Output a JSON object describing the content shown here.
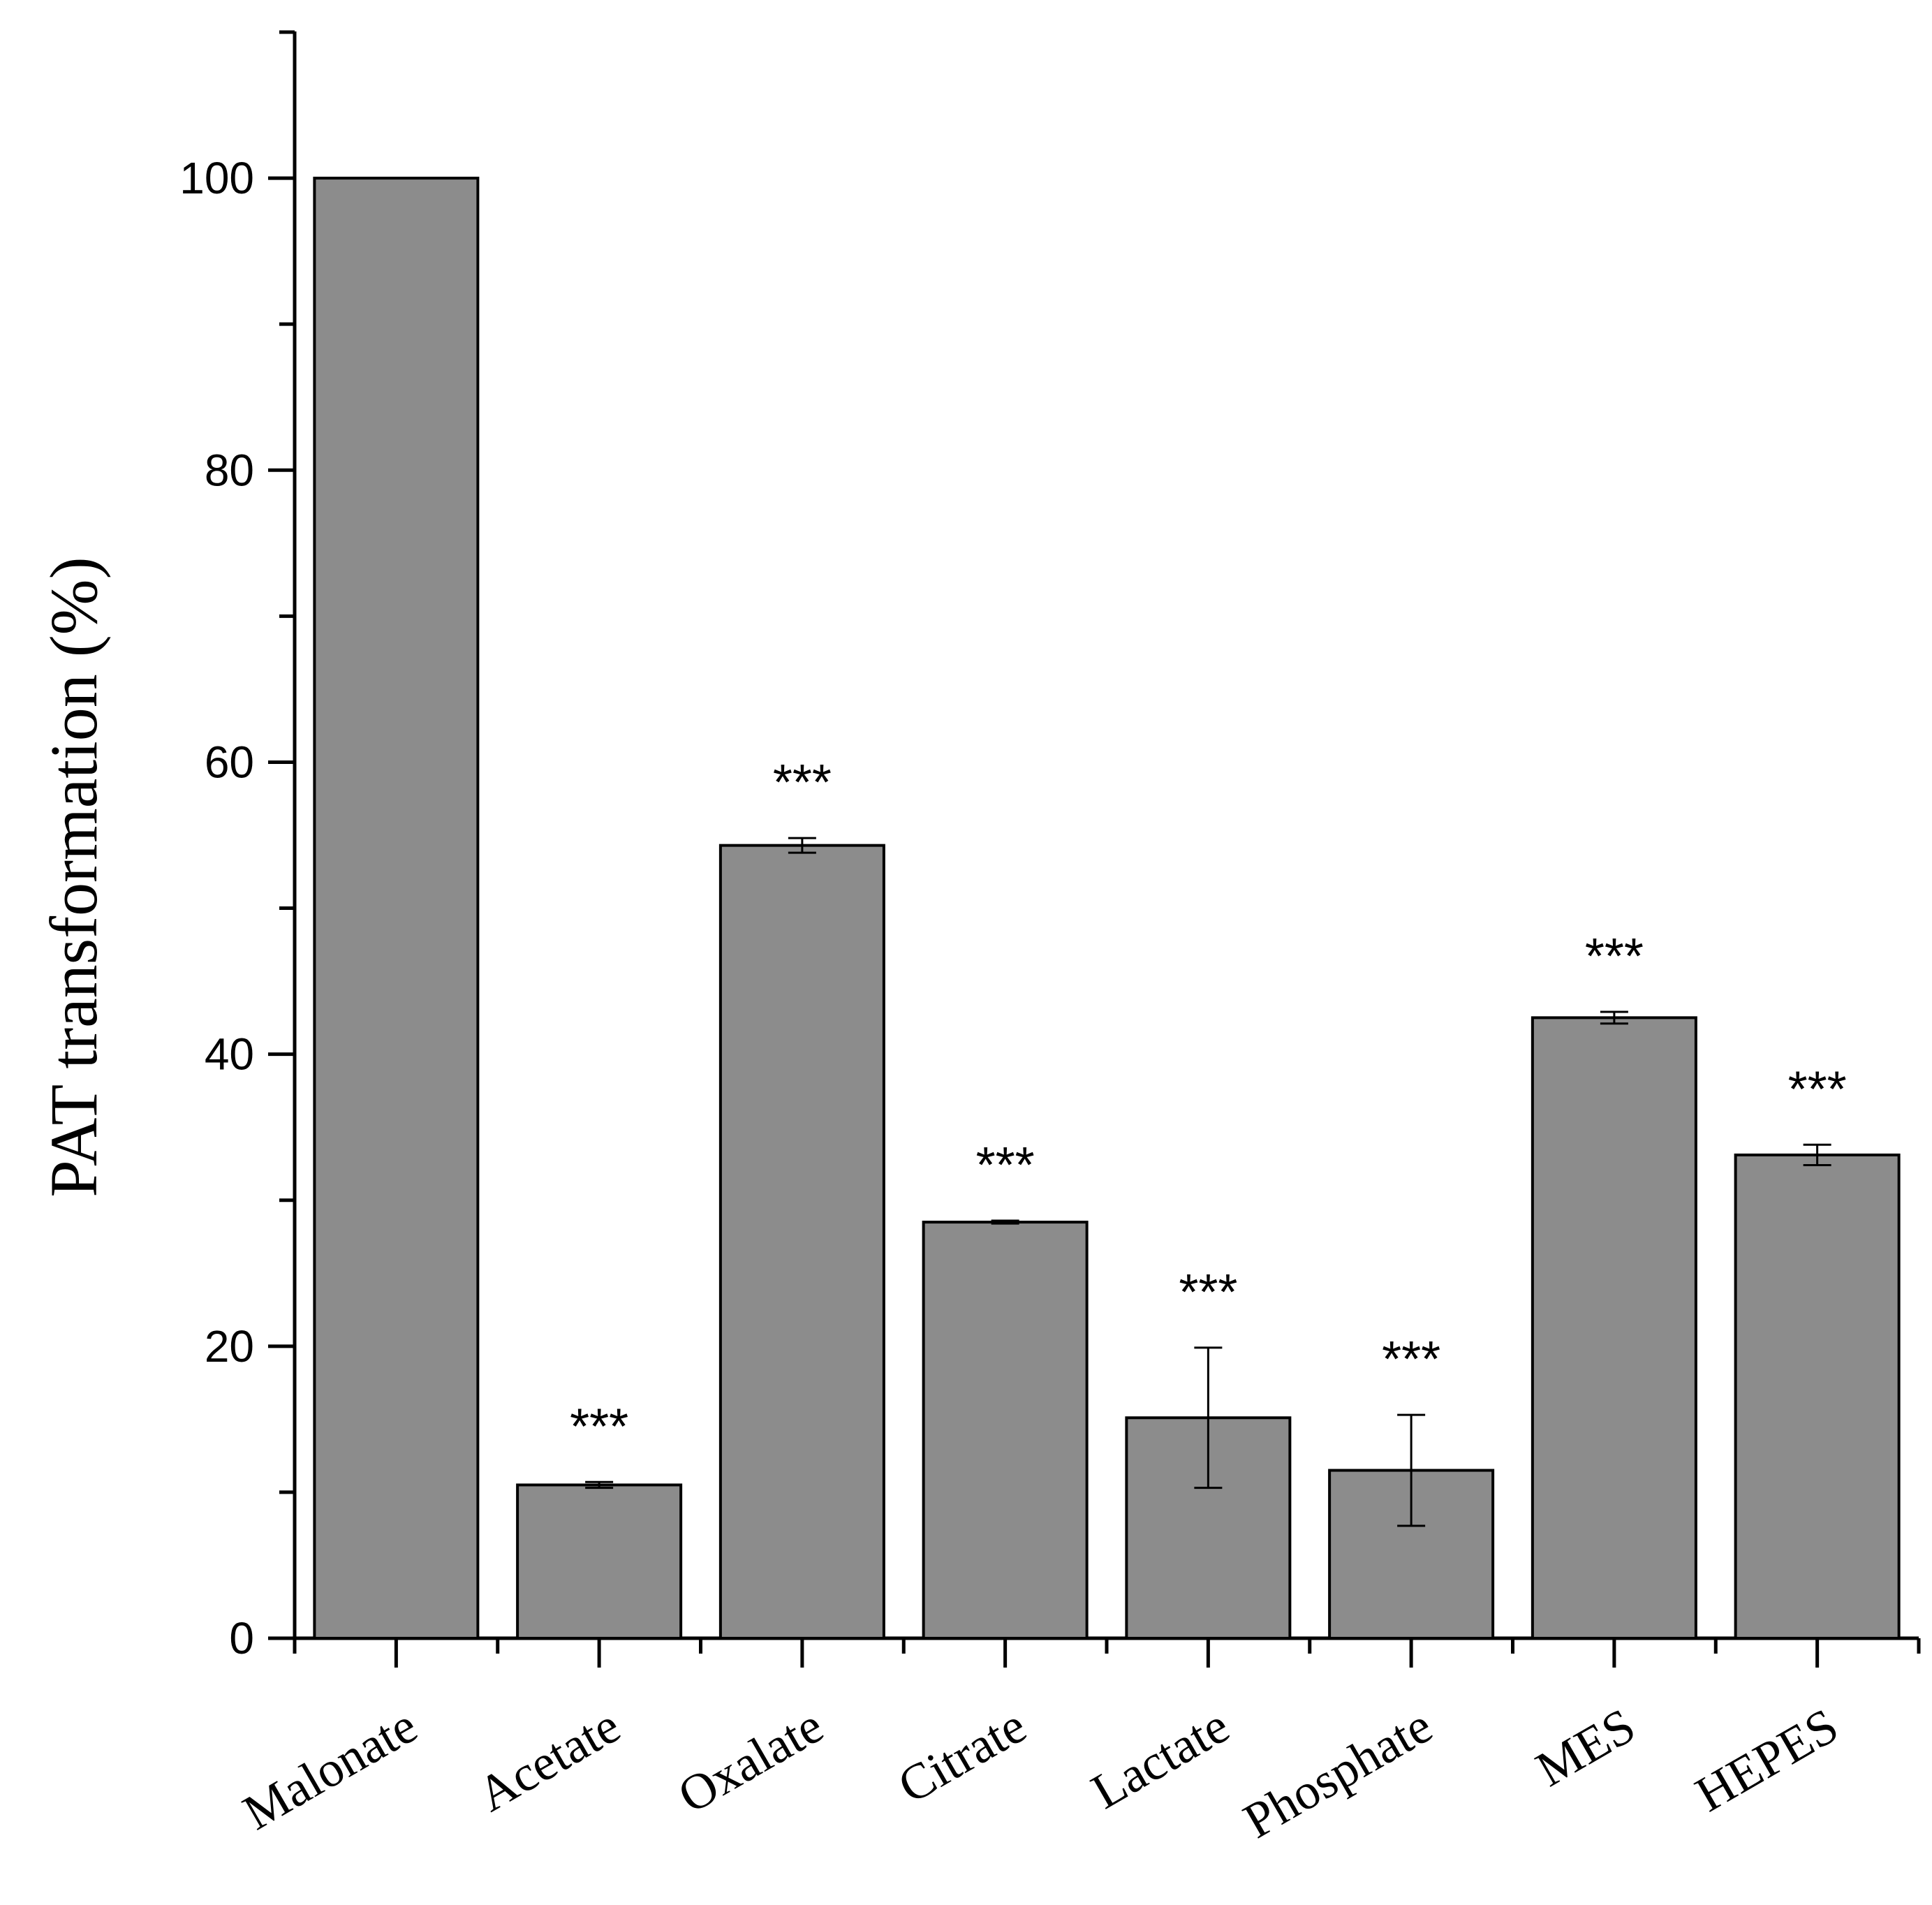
{
  "chart_data": {
    "type": "bar",
    "title": "",
    "xlabel": "",
    "ylabel": "PAT transformation (%)",
    "ylim": [
      0,
      110
    ],
    "yticks": [
      0,
      20,
      40,
      60,
      80,
      100
    ],
    "ytick_labels": [
      "0",
      "20",
      "40",
      "60",
      "80",
      "100"
    ],
    "categories": [
      "Malonate",
      "Acetate",
      "Oxalate",
      "Citrate",
      "Lactate",
      "Phosphate",
      "MES",
      "HEPES"
    ],
    "values": [
      100,
      10.5,
      54.3,
      28.5,
      15.1,
      11.5,
      42.5,
      33.1
    ],
    "errors": [
      0,
      0.2,
      0.5,
      0.1,
      4.8,
      3.8,
      0.4,
      0.7
    ],
    "significance": [
      "",
      "***",
      "***",
      "***",
      "***",
      "***",
      "***",
      "***"
    ],
    "bar_color": "#8c8c8c",
    "grid": false
  }
}
